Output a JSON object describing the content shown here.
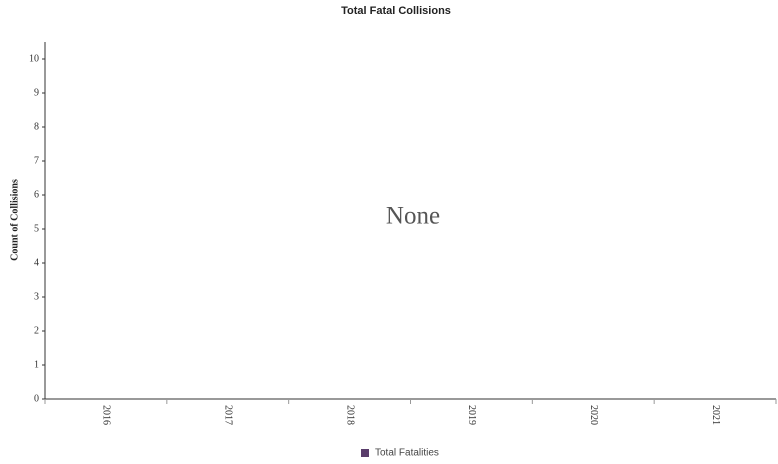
{
  "chart_data": {
    "type": "bar",
    "title": "Total Fatal Collisions",
    "y_label": "Count of Collisions",
    "annotation": "None",
    "categories": [
      "2016",
      "2017",
      "2018",
      "2019",
      "2020",
      "2021"
    ],
    "series": [
      {
        "name": "Total Fatalities",
        "color": "#5a3d6b",
        "values": [
          null,
          null,
          null,
          null,
          null,
          null
        ]
      }
    ],
    "ylim": [
      0,
      10.5
    ],
    "yticks": [
      0,
      1,
      2,
      3,
      4,
      5,
      6,
      7,
      8,
      9,
      10
    ],
    "grid": false,
    "legend": "bottom"
  }
}
